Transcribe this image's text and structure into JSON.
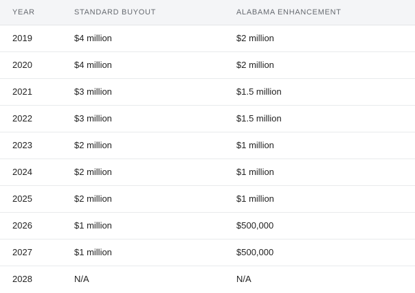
{
  "table": {
    "headers": {
      "year": "YEAR",
      "standard_buyout": "STANDARD BUYOUT",
      "alabama_enhancement": "ALABAMA ENHANCEMENT"
    },
    "rows": [
      {
        "year": "2019",
        "standard_buyout": "$4 million",
        "alabama_enhancement": "$2 million"
      },
      {
        "year": "2020",
        "standard_buyout": "$4 million",
        "alabama_enhancement": "$2 million"
      },
      {
        "year": "2021",
        "standard_buyout": "$3 million",
        "alabama_enhancement": "$1.5 million"
      },
      {
        "year": "2022",
        "standard_buyout": "$3 million",
        "alabama_enhancement": "$1.5 million"
      },
      {
        "year": "2023",
        "standard_buyout": "$2 million",
        "alabama_enhancement": "$1 million"
      },
      {
        "year": "2024",
        "standard_buyout": "$2 million",
        "alabama_enhancement": "$1 million"
      },
      {
        "year": "2025",
        "standard_buyout": "$2 million",
        "alabama_enhancement": "$1 million"
      },
      {
        "year": "2026",
        "standard_buyout": "$1 million",
        "alabama_enhancement": "$500,000"
      },
      {
        "year": "2027",
        "standard_buyout": "$1 million",
        "alabama_enhancement": "$500,000"
      },
      {
        "year": "2028",
        "standard_buyout": "N/A",
        "alabama_enhancement": "N/A"
      }
    ]
  }
}
